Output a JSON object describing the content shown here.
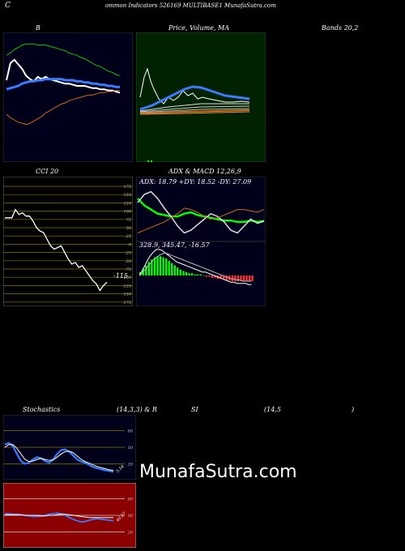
{
  "header": {
    "prefix": "C",
    "text": "ommon Indicators 526169 MULTIBASE1 MunafaSutra.com"
  },
  "titles": {
    "b": "B",
    "price_volume_ma": "Price,  Volume, MA",
    "bands": "Bands 20,2",
    "cci": "CCI 20",
    "adx_macd": "ADX  & MACD 12,26,9",
    "stoch_a": "Stochastics",
    "stoch_b": "(14,3,3) & R",
    "rsi_a": "SI",
    "rsi_b": "(14,5",
    "rsi_c": ")"
  },
  "readouts": {
    "adx": "ADX: 18.79  +DY: 18.52  -DY: 27.09",
    "macd": "328.9, 345.47,  -16.57",
    "cci_value": "-115",
    "stoch_value": "5.54",
    "rsi_value": "40.27"
  },
  "watermark": "MunafaSutra.com",
  "colors": {
    "panel_blue": "#00001a",
    "panel_green": "#002200",
    "panel_red": "#8b0000",
    "bright_green": "#00ff00",
    "blue_line": "#3a7bff",
    "orange": "#d2691e"
  },
  "chart_data": [
    {
      "type": "line",
      "panel": "bollinger",
      "x": [
        1,
        2,
        3,
        4,
        5,
        6,
        7,
        8,
        9,
        10,
        11,
        12,
        13,
        14,
        15,
        16,
        17,
        18,
        19,
        20,
        21,
        22,
        23,
        24,
        25,
        26,
        27,
        28,
        29,
        30
      ],
      "series": [
        {
          "values": [
            65,
            80,
            83,
            79,
            75,
            69,
            66,
            64,
            68,
            66,
            68,
            66,
            65,
            64,
            63,
            62,
            62,
            61,
            60,
            60,
            60,
            59,
            58,
            58,
            57,
            57,
            56,
            56,
            55,
            54
          ]
        },
        {
          "values": [
            57,
            58,
            59,
            60,
            62,
            63,
            64,
            64,
            65,
            65,
            66,
            66,
            66,
            66,
            66,
            65,
            65,
            65,
            64,
            64,
            63,
            63,
            62,
            62,
            61,
            61,
            60,
            60,
            59,
            59
          ]
        },
        {
          "values": [
            87,
            89,
            92,
            94,
            96,
            97,
            97,
            97,
            96,
            96,
            96,
            95,
            94,
            93,
            92,
            91,
            89,
            88,
            87,
            85,
            84,
            82,
            80,
            78,
            77,
            75,
            73,
            72,
            70,
            69
          ]
        },
        {
          "values": [
            35,
            32,
            30,
            28,
            27,
            26,
            27,
            29,
            31,
            33,
            36,
            38,
            40,
            42,
            44,
            45,
            47,
            48,
            49,
            50,
            51,
            52,
            52,
            53,
            54,
            54,
            55,
            55,
            56,
            56
          ]
        }
      ]
    },
    {
      "type": "line",
      "panel": "cci",
      "y_ticks": [
        "175",
        "150",
        "125",
        "100",
        "75",
        "50",
        "25",
        "0",
        "-25",
        "-50",
        "-75",
        "-100",
        "-125",
        "-150",
        "-175"
      ],
      "x": [
        1,
        2,
        3,
        4,
        5,
        6,
        7,
        8,
        9,
        10,
        11,
        12,
        13,
        14,
        15,
        16,
        17,
        18,
        19,
        20,
        21,
        22,
        23,
        24,
        25,
        26,
        27,
        28,
        29,
        30
      ],
      "values": [
        80,
        80,
        80,
        105,
        90,
        95,
        85,
        85,
        70,
        50,
        40,
        35,
        15,
        -5,
        -15,
        -10,
        -5,
        -25,
        -45,
        -60,
        -55,
        -70,
        -65,
        -80,
        -95,
        -110,
        -120,
        -140,
        -125,
        -115
      ]
    },
    {
      "type": "line",
      "panel": "adx",
      "x": [
        1,
        2,
        3,
        4,
        5,
        6,
        7,
        8,
        9,
        10,
        11,
        12,
        13,
        14,
        15,
        16,
        17,
        18,
        19,
        20
      ],
      "series": [
        {
          "values": [
            35,
            30,
            27,
            24,
            23,
            22,
            22,
            24,
            25,
            23,
            22,
            21,
            20,
            19,
            19,
            18,
            18,
            19,
            18,
            18.79
          ]
        },
        {
          "values": [
            32,
            38,
            40,
            35,
            28,
            22,
            15,
            10,
            12,
            16,
            20,
            24,
            22,
            18,
            12,
            10,
            15,
            20,
            17,
            18.52
          ]
        },
        {
          "values": [
            10,
            12,
            14,
            16,
            18,
            21,
            24,
            28,
            27,
            25,
            22,
            20,
            21,
            23,
            25,
            27,
            27,
            26,
            25,
            27.09
          ]
        }
      ]
    },
    {
      "type": "bar",
      "panel": "macd",
      "x": [
        1,
        2,
        3,
        4,
        5,
        6,
        7,
        8,
        9,
        10,
        11,
        12,
        13,
        14,
        15,
        16,
        17,
        18,
        19,
        20,
        21,
        22,
        23,
        24,
        25,
        26,
        27,
        28,
        29,
        30,
        31,
        32,
        33,
        34,
        35,
        36,
        37,
        38,
        39,
        40
      ],
      "histogram": [
        3,
        6,
        9,
        12,
        14,
        16,
        17,
        17,
        16,
        15,
        13,
        11,
        9,
        7,
        5,
        4,
        3,
        2,
        2,
        1,
        1,
        1,
        0,
        -1,
        -1,
        -2,
        -2,
        -3,
        -3,
        -3,
        -4,
        -4,
        -5,
        -5,
        -5,
        -5,
        -5,
        -5,
        -5,
        -5
      ],
      "series": [
        {
          "values": [
            0,
            4,
            9,
            14,
            18,
            21,
            23,
            23,
            22,
            20,
            18,
            16,
            14,
            12,
            11,
            10,
            9,
            8,
            7,
            6,
            5,
            4,
            3,
            3,
            2,
            1,
            0,
            -1,
            -2,
            -3,
            -4,
            -5,
            -6,
            -6,
            -7,
            -7,
            -7,
            -7,
            -8,
            -8
          ]
        },
        {
          "values": [
            0,
            2,
            5,
            8,
            11,
            14,
            16,
            18,
            19,
            20,
            19,
            18,
            17,
            16,
            15,
            14,
            13,
            12,
            11,
            10,
            9,
            8,
            7,
            6,
            5,
            4,
            3,
            2,
            1,
            0,
            -1,
            -2,
            -3,
            -3,
            -4,
            -4,
            -5,
            -5,
            -5,
            -5
          ]
        }
      ]
    },
    {
      "type": "line",
      "panel": "stochastics",
      "y_ticks": [
        "80",
        "50",
        "20"
      ],
      "x": [
        1,
        2,
        3,
        4,
        5,
        6,
        7,
        8,
        9,
        10,
        11,
        12,
        13,
        14,
        15,
        16,
        17,
        18,
        19,
        20,
        21,
        22,
        23,
        24,
        25,
        26,
        27,
        28
      ],
      "series": [
        {
          "values": [
            55,
            58,
            52,
            38,
            25,
            20,
            22,
            28,
            32,
            30,
            25,
            22,
            28,
            38,
            45,
            46,
            42,
            35,
            28,
            24,
            22,
            18,
            14,
            12,
            10,
            8,
            7,
            5.54
          ]
        },
        {
          "values": [
            50,
            55,
            55,
            48,
            38,
            28,
            24,
            25,
            28,
            30,
            28,
            26,
            27,
            32,
            38,
            42,
            43,
            40,
            34,
            28,
            24,
            21,
            18,
            15,
            13,
            11,
            9,
            8
          ]
        }
      ]
    },
    {
      "type": "line",
      "panel": "rsi",
      "y_ticks": [
        "80",
        "50",
        "20"
      ],
      "x": [
        1,
        2,
        3,
        4,
        5,
        6,
        7,
        8,
        9,
        10,
        11,
        12,
        13,
        14,
        15,
        16,
        17,
        18,
        19,
        20,
        21,
        22,
        23,
        24,
        25,
        26,
        27,
        28
      ],
      "series": [
        {
          "values": [
            53,
            53,
            52,
            52,
            51,
            50,
            49,
            48,
            48,
            49,
            50,
            52,
            53,
            54,
            53,
            50,
            46,
            43,
            40,
            38,
            39,
            41,
            43,
            44,
            43,
            42,
            41,
            40.27
          ]
        },
        {
          "values": [
            51,
            51,
            51,
            51,
            51,
            50,
            50,
            50,
            50,
            49,
            49,
            50,
            50,
            51,
            52,
            52,
            51,
            50,
            49,
            48,
            47,
            46,
            46,
            46,
            46,
            46,
            46,
            46
          ]
        }
      ]
    }
  ]
}
